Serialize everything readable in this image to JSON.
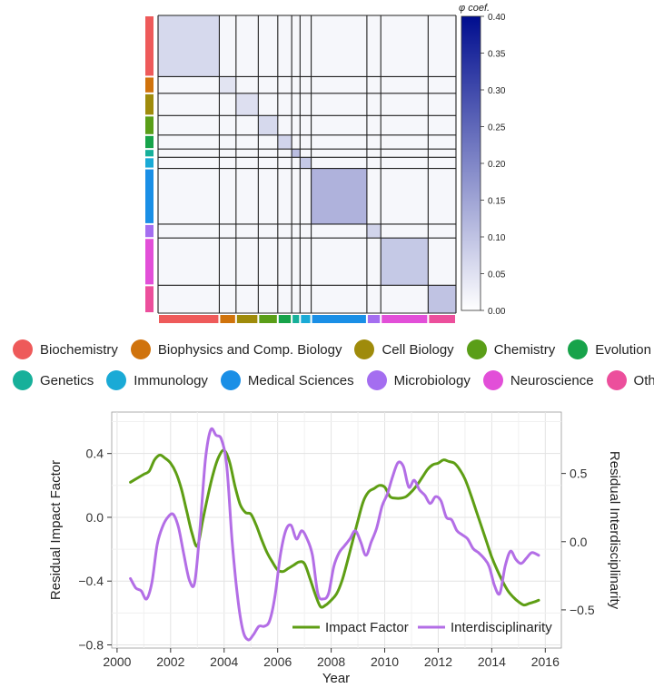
{
  "chart_data": [
    {
      "type": "heatmap",
      "title": "",
      "colorbar": {
        "label": "φ coef.",
        "range": [
          0,
          0.4
        ],
        "ticks": [
          "0.00",
          "0.05",
          "0.10",
          "0.15",
          "0.20",
          "0.25",
          "0.30",
          "0.35",
          "0.40"
        ],
        "colors": [
          "#ffffff",
          "#000d8f"
        ]
      },
      "groups": [
        {
          "name": "Biochemistry",
          "color": "#ee5a5a",
          "weight": 22
        },
        {
          "name": "Biophysics and Comp. Biology",
          "color": "#d0730c",
          "weight": 6
        },
        {
          "name": "Cell Biology",
          "color": "#9f8b0b",
          "weight": 8
        },
        {
          "name": "Chemistry",
          "color": "#5a9e18",
          "weight": 7
        },
        {
          "name": "Evolution",
          "color": "#17a34a",
          "weight": 5
        },
        {
          "name": "Genetics",
          "color": "#17b09a",
          "weight": 3
        },
        {
          "name": "Immunology",
          "color": "#1aaad6",
          "weight": 4
        },
        {
          "name": "Medical Sciences",
          "color": "#1a8fe6",
          "weight": 20
        },
        {
          "name": "Microbiology",
          "color": "#a46ef0",
          "weight": 5
        },
        {
          "name": "Neuroscience",
          "color": "#e24fd8",
          "weight": 17
        },
        {
          "name": "Other",
          "color": "#ec4f9c",
          "weight": 10
        }
      ],
      "block_intensity": [
        0.07,
        0.05,
        0.06,
        0.07,
        0.08,
        0.12,
        0.1,
        0.14,
        0.08,
        0.1,
        0.11
      ],
      "background_intensity": 0.015
    },
    {
      "type": "line",
      "title": "",
      "xlabel": "Year",
      "ylabel": "Residual Impact Factor",
      "y2label": "Residual Interdisciplinarity",
      "xlim": [
        1999.8,
        2016.6
      ],
      "ylim": [
        -0.82,
        0.66
      ],
      "y2lim": [
        -0.78,
        0.95
      ],
      "xticks": [
        2000,
        2002,
        2004,
        2006,
        2008,
        2010,
        2012,
        2014,
        2016
      ],
      "yticks": [
        -0.8,
        -0.4,
        0.0,
        0.4
      ],
      "ytick_labels": [
        "−0.8",
        "−0.4",
        "0.0",
        "0.4"
      ],
      "y2ticks": [
        -0.5,
        0.0,
        0.5
      ],
      "y2tick_labels": [
        "−0.5",
        "0.0",
        "0.5"
      ],
      "legend_position": "bottom-right",
      "series": [
        {
          "name": "Impact Factor",
          "axis": "left",
          "color": "#5e9e14",
          "x": [
            2000.5,
            2000.8,
            2001.0,
            2001.2,
            2001.4,
            2001.6,
            2001.8,
            2002.0,
            2002.2,
            2002.4,
            2002.6,
            2002.8,
            2003.0,
            2003.2,
            2003.4,
            2003.6,
            2003.8,
            2004.0,
            2004.2,
            2004.4,
            2004.6,
            2004.8,
            2005.0,
            2005.2,
            2005.4,
            2005.6,
            2005.8,
            2006.0,
            2006.2,
            2006.4,
            2006.6,
            2006.8,
            2007.0,
            2007.2,
            2007.4,
            2007.6,
            2007.8,
            2008.0,
            2008.2,
            2008.4,
            2008.6,
            2008.8,
            2009.0,
            2009.2,
            2009.4,
            2009.6,
            2009.8,
            2010.0,
            2010.2,
            2010.4,
            2010.6,
            2010.8,
            2011.0,
            2011.2,
            2011.4,
            2011.6,
            2011.8,
            2012.0,
            2012.2,
            2012.4,
            2012.6,
            2012.8,
            2013.0,
            2013.2,
            2013.4,
            2013.6,
            2013.8,
            2014.0,
            2014.2,
            2014.4,
            2014.6,
            2014.8,
            2015.0,
            2015.2,
            2015.4,
            2015.6,
            2015.75
          ],
          "values": [
            0.22,
            0.25,
            0.27,
            0.29,
            0.36,
            0.39,
            0.37,
            0.34,
            0.28,
            0.18,
            0.04,
            -0.1,
            -0.18,
            -0.02,
            0.14,
            0.28,
            0.38,
            0.42,
            0.35,
            0.2,
            0.08,
            0.03,
            0.02,
            -0.05,
            -0.14,
            -0.22,
            -0.28,
            -0.33,
            -0.34,
            -0.32,
            -0.3,
            -0.28,
            -0.29,
            -0.38,
            -0.48,
            -0.56,
            -0.55,
            -0.52,
            -0.48,
            -0.4,
            -0.28,
            -0.15,
            -0.02,
            0.1,
            0.16,
            0.18,
            0.2,
            0.19,
            0.13,
            0.12,
            0.12,
            0.13,
            0.16,
            0.2,
            0.25,
            0.3,
            0.33,
            0.34,
            0.36,
            0.35,
            0.34,
            0.3,
            0.24,
            0.15,
            0.05,
            -0.05,
            -0.15,
            -0.25,
            -0.33,
            -0.4,
            -0.46,
            -0.5,
            -0.53,
            -0.55,
            -0.54,
            -0.53,
            -0.52
          ]
        },
        {
          "name": "Interdisciplinarity",
          "axis": "right",
          "color": "#b36ee6",
          "x": [
            2000.5,
            2000.7,
            2000.9,
            2001.1,
            2001.3,
            2001.5,
            2001.7,
            2001.9,
            2002.1,
            2002.3,
            2002.5,
            2002.7,
            2002.9,
            2003.1,
            2003.3,
            2003.5,
            2003.7,
            2003.9,
            2004.1,
            2004.3,
            2004.5,
            2004.7,
            2004.9,
            2005.1,
            2005.3,
            2005.5,
            2005.7,
            2005.9,
            2006.1,
            2006.3,
            2006.5,
            2006.7,
            2006.9,
            2007.1,
            2007.3,
            2007.5,
            2007.7,
            2007.9,
            2008.1,
            2008.3,
            2008.5,
            2008.7,
            2008.9,
            2009.1,
            2009.3,
            2009.5,
            2009.7,
            2009.9,
            2010.1,
            2010.3,
            2010.5,
            2010.7,
            2010.9,
            2011.1,
            2011.3,
            2011.5,
            2011.7,
            2011.9,
            2012.1,
            2012.3,
            2012.5,
            2012.7,
            2012.9,
            2013.1,
            2013.3,
            2013.5,
            2013.7,
            2013.9,
            2014.1,
            2014.3,
            2014.5,
            2014.7,
            2014.9,
            2015.1,
            2015.3,
            2015.5,
            2015.75
          ],
          "values": [
            -0.27,
            -0.34,
            -0.36,
            -0.42,
            -0.3,
            -0.02,
            0.11,
            0.18,
            0.2,
            0.1,
            -0.1,
            -0.28,
            -0.3,
            0.1,
            0.6,
            0.82,
            0.78,
            0.75,
            0.55,
            0.0,
            -0.4,
            -0.65,
            -0.72,
            -0.68,
            -0.62,
            -0.62,
            -0.58,
            -0.4,
            -0.1,
            0.08,
            0.12,
            0.02,
            0.08,
            0.02,
            -0.1,
            -0.38,
            -0.42,
            -0.38,
            -0.18,
            -0.08,
            -0.03,
            0.02,
            0.08,
            0.0,
            -0.1,
            0.0,
            0.1,
            0.26,
            0.35,
            0.48,
            0.58,
            0.55,
            0.4,
            0.45,
            0.38,
            0.34,
            0.28,
            0.33,
            0.3,
            0.18,
            0.16,
            0.08,
            0.05,
            0.02,
            -0.05,
            -0.08,
            -0.12,
            -0.18,
            -0.32,
            -0.38,
            -0.18,
            -0.07,
            -0.13,
            -0.16,
            -0.12,
            -0.08,
            -0.1
          ]
        }
      ]
    }
  ]
}
